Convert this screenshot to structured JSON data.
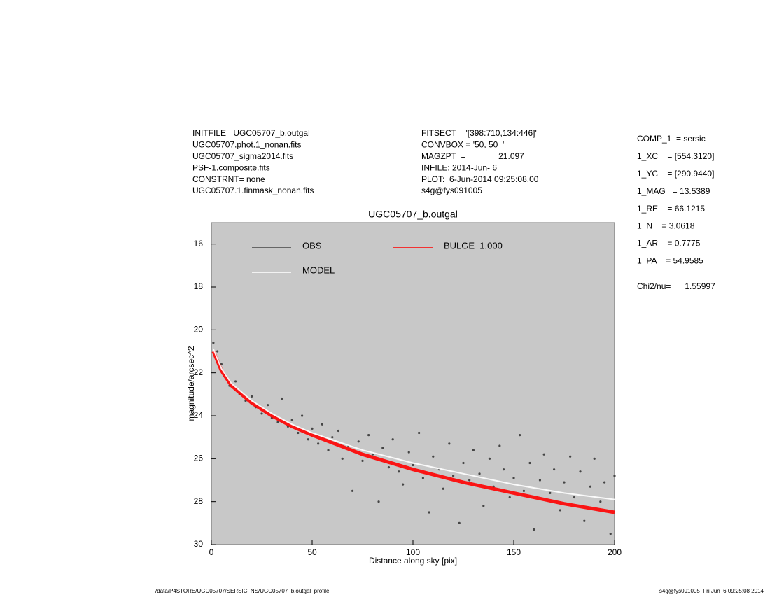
{
  "chart_data": {
    "type": "scatter",
    "title": "UGC05707_b.outgal",
    "x_label": "Distance along sky [pix]",
    "y_label": "magnitude/arcsec^2",
    "xlim": [
      0,
      200
    ],
    "ylim": [
      15,
      30
    ],
    "y_inverted": true,
    "xticks": [
      0,
      50,
      100,
      150,
      200
    ],
    "yticks": [
      16,
      18,
      20,
      22,
      24,
      26,
      28,
      30
    ],
    "background": "#c8c8c8",
    "header_left": [
      "INITFILE= UGC05707_b.outgal",
      "UGC05707.phot.1_nonan.fits",
      "UGC05707_sigma2014.fits",
      "PSF-1.composite.fits",
      "CONSTRNT= none",
      "UGC05707.1.finmask_nonan.fits"
    ],
    "header_middle": [
      "FITSECT = '[398:710,134:446]'",
      "CONVBOX = '50, 50  '",
      "MAGZPT  =              21.097",
      "INFILE: 2014-Jun- 6",
      "PLOT:  6-Jun-2014 09:25:08.00",
      "s4g@fys091005"
    ],
    "parameters": [
      "COMP_1  = sersic",
      "1_XC    = [554.3120]",
      "1_YC    = [290.9440]",
      "1_MAG   = 13.5389",
      "1_RE    = 66.1215",
      "1_N    = 3.0618",
      "1_AR    = 0.7775",
      "1_PA    = 54.9585"
    ],
    "chi2": "Chi2/nu=      1.55997",
    "footer_left": "/data/P4STORE/UGC05707/SERSIC_NS/UGC05707_b.outgal_profile",
    "footer_right": "s4g@fys091005  Fri Jun  6 09:25:08 2014",
    "series": [
      {
        "name": "OBS",
        "type": "scatter",
        "color": "#454545",
        "x": [
          1,
          3,
          5,
          7,
          9,
          12,
          14,
          17,
          20,
          22,
          25,
          28,
          30,
          33,
          35,
          38,
          40,
          43,
          45,
          48,
          50,
          53,
          55,
          58,
          60,
          63,
          65,
          68,
          70,
          73,
          75,
          78,
          80,
          83,
          85,
          88,
          90,
          93,
          95,
          98,
          100,
          103,
          105,
          108,
          110,
          113,
          115,
          118,
          120,
          123,
          125,
          128,
          130,
          133,
          135,
          138,
          140,
          143,
          145,
          148,
          150,
          153,
          155,
          158,
          160,
          163,
          165,
          168,
          170,
          173,
          175,
          178,
          180,
          183,
          185,
          188,
          190,
          193,
          195,
          198,
          200
        ],
        "values": [
          20.6,
          21.0,
          21.6,
          22.1,
          22.6,
          22.4,
          23.0,
          23.3,
          23.1,
          23.6,
          23.9,
          23.5,
          24.1,
          24.3,
          23.2,
          24.5,
          24.2,
          24.8,
          24.0,
          25.1,
          24.6,
          25.3,
          24.4,
          25.6,
          25.0,
          24.7,
          26.0,
          25.4,
          27.5,
          25.2,
          26.1,
          24.9,
          25.8,
          28.0,
          25.5,
          26.4,
          25.1,
          26.6,
          27.2,
          25.7,
          26.3,
          24.8,
          26.9,
          28.5,
          25.9,
          26.5,
          27.4,
          25.3,
          26.8,
          29.0,
          26.2,
          27.0,
          25.6,
          26.7,
          28.2,
          26.0,
          27.3,
          25.4,
          26.5,
          27.8,
          26.9,
          24.9,
          27.5,
          26.2,
          29.3,
          27.0,
          25.8,
          27.6,
          26.5,
          28.4,
          27.1,
          25.9,
          27.8,
          26.6,
          28.9,
          27.3,
          26.0,
          28.0,
          27.1,
          29.5,
          26.8
        ]
      },
      {
        "name": "MODEL",
        "type": "line",
        "color": "#ffffff",
        "x": [
          1,
          5,
          10,
          20,
          30,
          40,
          50,
          75,
          100,
          125,
          150,
          175,
          200
        ],
        "values": [
          20.9,
          21.8,
          22.5,
          23.3,
          23.9,
          24.4,
          24.8,
          25.6,
          26.2,
          26.7,
          27.2,
          27.6,
          27.9
        ]
      },
      {
        "name": "BULGE  1.000",
        "type": "line",
        "color": "#ff0000",
        "x": [
          1,
          5,
          10,
          20,
          30,
          40,
          50,
          75,
          100,
          125,
          150,
          175,
          200
        ],
        "values": [
          21.0,
          21.9,
          22.6,
          23.4,
          24.0,
          24.5,
          24.9,
          25.8,
          26.5,
          27.1,
          27.6,
          28.1,
          28.5
        ]
      }
    ]
  }
}
